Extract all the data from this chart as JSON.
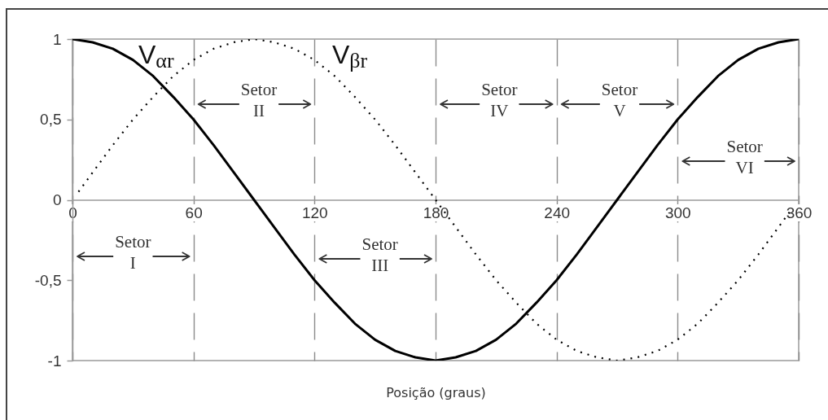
{
  "chart_data": {
    "type": "line",
    "xlabel": "Posição (graus)",
    "x": [
      0,
      10,
      20,
      30,
      40,
      50,
      60,
      70,
      80,
      90,
      100,
      110,
      120,
      130,
      140,
      150,
      160,
      170,
      180,
      190,
      200,
      210,
      220,
      230,
      240,
      250,
      260,
      270,
      280,
      290,
      300,
      310,
      320,
      330,
      340,
      350,
      360
    ],
    "series": [
      {
        "name": "V$_{αr}$",
        "color": "#000000",
        "line_style": "solid",
        "values": [
          1,
          0.98,
          0.94,
          0.87,
          0.77,
          0.64,
          0.5,
          0.34,
          0.17,
          0,
          -0.17,
          -0.34,
          -0.5,
          -0.64,
          -0.77,
          -0.87,
          -0.94,
          -0.98,
          -1,
          -0.98,
          -0.94,
          -0.87,
          -0.77,
          -0.64,
          -0.5,
          -0.34,
          -0.17,
          0,
          0.17,
          0.34,
          0.5,
          0.64,
          0.77,
          0.87,
          0.94,
          0.98,
          1
        ]
      },
      {
        "name": "V$_{βr}$",
        "color": "#000000",
        "line_style": "dotted",
        "x": [
          3,
          10,
          20,
          30,
          40,
          50,
          60,
          70,
          80,
          90,
          100,
          110,
          120,
          130,
          140,
          150,
          160,
          170,
          180,
          190,
          200,
          210,
          220,
          230,
          240,
          250,
          260,
          270,
          280,
          290,
          300,
          310,
          320,
          330,
          340,
          350,
          357
        ],
        "values": [
          0.05,
          0.17,
          0.34,
          0.5,
          0.64,
          0.77,
          0.87,
          0.94,
          0.98,
          1,
          0.98,
          0.94,
          0.87,
          0.77,
          0.64,
          0.5,
          0.34,
          0.17,
          0,
          -0.17,
          -0.34,
          -0.5,
          -0.64,
          -0.77,
          -0.87,
          -0.94,
          -0.98,
          -1,
          -0.98,
          -0.94,
          -0.87,
          -0.77,
          -0.64,
          -0.5,
          -0.34,
          -0.17,
          -0.05
        ]
      }
    ],
    "xlim": [
      0,
      360
    ],
    "xticks": [
      0,
      60,
      120,
      180,
      240,
      300,
      360
    ],
    "ylim": [
      -1,
      1
    ],
    "yticks": [
      -1,
      {
        "value": -0.5,
        "label": "-0,5"
      },
      0,
      {
        "value": 0.5,
        "label": "0,5"
      },
      1
    ],
    "grid": "x",
    "annotations": [
      "Setor I",
      "Setor II",
      "Setor III",
      "Setor IV",
      "Setor V",
      "Setor VI"
    ]
  }
}
